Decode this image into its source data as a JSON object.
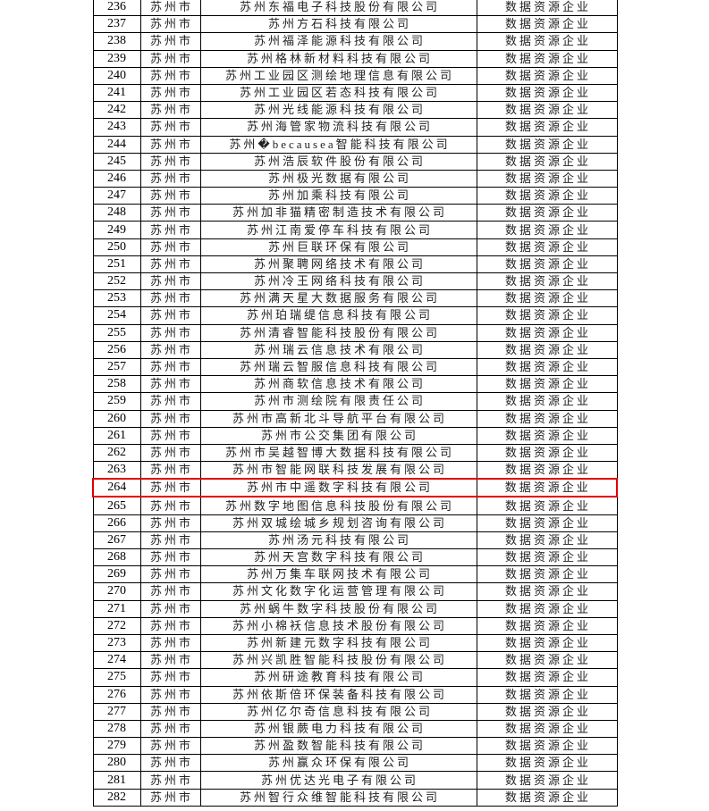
{
  "highlight_color": "#e00000",
  "highlighted_row_no": "264",
  "rows": [
    {
      "no": "236",
      "city": "苏州市",
      "name": "苏州东福电子科技股份有限公司",
      "type": "数据资源企业"
    },
    {
      "no": "237",
      "city": "苏州市",
      "name": "苏州方石科技有限公司",
      "type": "数据资源企业"
    },
    {
      "no": "238",
      "city": "苏州市",
      "name": "苏州福泽能源科技有限公司",
      "type": "数据资源企业"
    },
    {
      "no": "239",
      "city": "苏州市",
      "name": "苏州格林新材料科技有限公司",
      "type": "数据资源企业"
    },
    {
      "no": "240",
      "city": "苏州市",
      "name": "苏州工业园区测绘地理信息有限公司",
      "type": "数据资源企业"
    },
    {
      "no": "241",
      "city": "苏州市",
      "name": "苏州工业园区若态科技有限公司",
      "type": "数据资源企业"
    },
    {
      "no": "242",
      "city": "苏州市",
      "name": "苏州光线能源科技有限公司",
      "type": "数据资源企业"
    },
    {
      "no": "243",
      "city": "苏州市",
      "name": "苏州海管家物流科技有限公司",
      "type": "数据资源企业"
    },
    {
      "no": "244",
      "city": "苏州市",
      "name": "苏州�becausea智能科技有限公司",
      "type": "数据资源企业"
    },
    {
      "no": "245",
      "city": "苏州市",
      "name": "苏州浩辰软件股份有限公司",
      "type": "数据资源企业"
    },
    {
      "no": "246",
      "city": "苏州市",
      "name": "苏州极光数据有限公司",
      "type": "数据资源企业"
    },
    {
      "no": "247",
      "city": "苏州市",
      "name": "苏州加乘科技有限公司",
      "type": "数据资源企业"
    },
    {
      "no": "248",
      "city": "苏州市",
      "name": "苏州加非猫精密制造技术有限公司",
      "type": "数据资源企业"
    },
    {
      "no": "249",
      "city": "苏州市",
      "name": "苏州江南爱停车科技有限公司",
      "type": "数据资源企业"
    },
    {
      "no": "250",
      "city": "苏州市",
      "name": "苏州巨联环保有限公司",
      "type": "数据资源企业"
    },
    {
      "no": "251",
      "city": "苏州市",
      "name": "苏州聚聘网络技术有限公司",
      "type": "数据资源企业"
    },
    {
      "no": "252",
      "city": "苏州市",
      "name": "苏州冷王网络科技有限公司",
      "type": "数据资源企业"
    },
    {
      "no": "253",
      "city": "苏州市",
      "name": "苏州满天星大数据服务有限公司",
      "type": "数据资源企业"
    },
    {
      "no": "254",
      "city": "苏州市",
      "name": "苏州珀瑞缇信息科技有限公司",
      "type": "数据资源企业"
    },
    {
      "no": "255",
      "city": "苏州市",
      "name": "苏州清睿智能科技股份有限公司",
      "type": "数据资源企业"
    },
    {
      "no": "256",
      "city": "苏州市",
      "name": "苏州瑞云信息技术有限公司",
      "type": "数据资源企业"
    },
    {
      "no": "257",
      "city": "苏州市",
      "name": "苏州瑞云智服信息科技有限公司",
      "type": "数据资源企业"
    },
    {
      "no": "258",
      "city": "苏州市",
      "name": "苏州商软信息技术有限公司",
      "type": "数据资源企业"
    },
    {
      "no": "259",
      "city": "苏州市",
      "name": "苏州市测绘院有限责任公司",
      "type": "数据资源企业"
    },
    {
      "no": "260",
      "city": "苏州市",
      "name": "苏州市高新北斗导航平台有限公司",
      "type": "数据资源企业"
    },
    {
      "no": "261",
      "city": "苏州市",
      "name": "苏州市公交集团有限公司",
      "type": "数据资源企业"
    },
    {
      "no": "262",
      "city": "苏州市",
      "name": "苏州市吴越智博大数据科技有限公司",
      "type": "数据资源企业"
    },
    {
      "no": "263",
      "city": "苏州市",
      "name": "苏州市智能网联科技发展有限公司",
      "type": "数据资源企业"
    },
    {
      "no": "264",
      "city": "苏州市",
      "name": "苏州市中遥数字科技有限公司",
      "type": "数据资源企业"
    },
    {
      "no": "265",
      "city": "苏州市",
      "name": "苏州数字地图信息科技股份有限公司",
      "type": "数据资源企业"
    },
    {
      "no": "266",
      "city": "苏州市",
      "name": "苏州双城绘城乡规划咨询有限公司",
      "type": "数据资源企业"
    },
    {
      "no": "267",
      "city": "苏州市",
      "name": "苏州汤元科技有限公司",
      "type": "数据资源企业"
    },
    {
      "no": "268",
      "city": "苏州市",
      "name": "苏州天宫数字科技有限公司",
      "type": "数据资源企业"
    },
    {
      "no": "269",
      "city": "苏州市",
      "name": "苏州万集车联网技术有限公司",
      "type": "数据资源企业"
    },
    {
      "no": "270",
      "city": "苏州市",
      "name": "苏州文化数字化运营管理有限公司",
      "type": "数据资源企业"
    },
    {
      "no": "271",
      "city": "苏州市",
      "name": "苏州蜗牛数字科技股份有限公司",
      "type": "数据资源企业"
    },
    {
      "no": "272",
      "city": "苏州市",
      "name": "苏州小棉袄信息技术股份有限公司",
      "type": "数据资源企业"
    },
    {
      "no": "273",
      "city": "苏州市",
      "name": "苏州新建元数字科技有限公司",
      "type": "数据资源企业"
    },
    {
      "no": "274",
      "city": "苏州市",
      "name": "苏州兴凯胜智能科技股份有限公司",
      "type": "数据资源企业"
    },
    {
      "no": "275",
      "city": "苏州市",
      "name": "苏州研途教育科技有限公司",
      "type": "数据资源企业"
    },
    {
      "no": "276",
      "city": "苏州市",
      "name": "苏州依斯倍环保装备科技有限公司",
      "type": "数据资源企业"
    },
    {
      "no": "277",
      "city": "苏州市",
      "name": "苏州亿尔奇信息科技有限公司",
      "type": "数据资源企业"
    },
    {
      "no": "278",
      "city": "苏州市",
      "name": "苏州银蕨电力科技有限公司",
      "type": "数据资源企业"
    },
    {
      "no": "279",
      "city": "苏州市",
      "name": "苏州盈数智能科技有限公司",
      "type": "数据资源企业"
    },
    {
      "no": "280",
      "city": "苏州市",
      "name": "苏州赢众环保有限公司",
      "type": "数据资源企业"
    },
    {
      "no": "281",
      "city": "苏州市",
      "name": "苏州优达光电子有限公司",
      "type": "数据资源企业"
    },
    {
      "no": "282",
      "city": "苏州市",
      "name": "苏州智行众维智能科技有限公司",
      "type": "数据资源企业"
    }
  ]
}
